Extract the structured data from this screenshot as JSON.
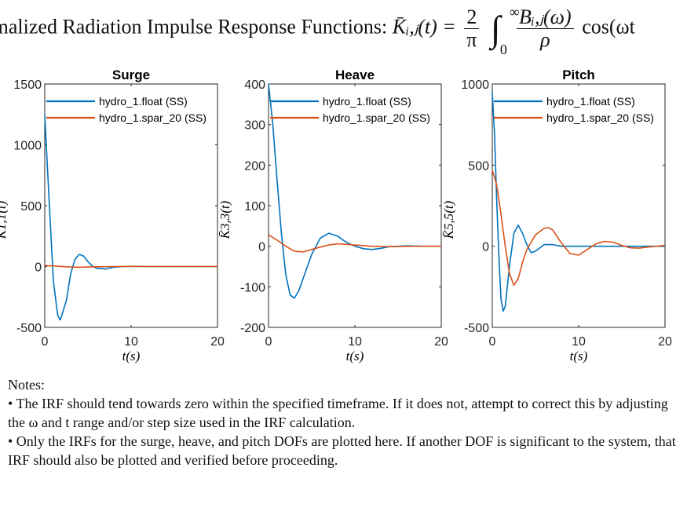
{
  "figure_title": {
    "prefix": "rmalized Radiation Impulse Response Functions:",
    "lhs": "K̄ᵢ,ⱼ(t) =",
    "frac1_num": "2",
    "frac1_den": "π",
    "int_upper": "∞",
    "int_lower": "0",
    "frac2_num": "Bᵢ,ⱼ(ω)",
    "frac2_den": "ρ",
    "tail": "cos(ωt"
  },
  "colors": {
    "series1": "#0072BD",
    "series2": "#D95319",
    "axis": "#262626"
  },
  "chart_data": [
    {
      "type": "line",
      "title": "Surge",
      "ylabel": "K̄1,1(t)",
      "xlabel": "t(s)",
      "xlim": [
        0,
        20
      ],
      "ylim": [
        -500,
        1500
      ],
      "xticks": [
        "0",
        "10",
        "20"
      ],
      "yticks": [
        "-500",
        "0",
        "500",
        "1000",
        "1500"
      ],
      "legend": "top-right",
      "series": [
        {
          "name": "hydro_1.float (SS)",
          "x": [
            0,
            0.5,
            1,
            1.5,
            1.8,
            2.5,
            3,
            3.5,
            4,
            4.5,
            5,
            5.5,
            6,
            7,
            8,
            9,
            10,
            12,
            14,
            16,
            18,
            20
          ],
          "y": [
            1250,
            550,
            -120,
            -400,
            -440,
            -280,
            -60,
            60,
            100,
            85,
            40,
            5,
            -15,
            -20,
            -5,
            0,
            2,
            0,
            0,
            0,
            0,
            0
          ]
        },
        {
          "name": "hydro_1.spar_20 (SS)",
          "x": [
            0,
            1,
            2,
            3,
            4,
            5,
            6,
            8,
            10,
            12,
            14,
            16,
            18,
            20
          ],
          "y": [
            8,
            5,
            0,
            -4,
            -6,
            -4,
            -2,
            0,
            1,
            0,
            0,
            0,
            0,
            0
          ]
        }
      ]
    },
    {
      "type": "line",
      "title": "Heave",
      "ylabel": "K̄3,3(t)",
      "xlabel": "t(s)",
      "xlim": [
        0,
        20
      ],
      "ylim": [
        -200,
        400
      ],
      "xticks": [
        "0",
        "10",
        "20"
      ],
      "yticks": [
        "-200",
        "-100",
        "0",
        "100",
        "200",
        "300",
        "400"
      ],
      "legend": "top-right",
      "series": [
        {
          "name": "hydro_1.float (SS)",
          "x": [
            0,
            0.5,
            1,
            1.5,
            2,
            2.5,
            3,
            3.5,
            4,
            5,
            6,
            7,
            8,
            9,
            10,
            11,
            12,
            13,
            14,
            16,
            18,
            20
          ],
          "y": [
            400,
            300,
            160,
            30,
            -70,
            -120,
            -128,
            -110,
            -80,
            -20,
            20,
            32,
            25,
            10,
            0,
            -6,
            -8,
            -5,
            -1,
            1,
            0,
            0
          ]
        },
        {
          "name": "hydro_1.spar_20 (SS)",
          "x": [
            0,
            1,
            2,
            3,
            4,
            5,
            6,
            7,
            8,
            10,
            12,
            14,
            16,
            18,
            20
          ],
          "y": [
            28,
            15,
            0,
            -12,
            -14,
            -8,
            -2,
            3,
            6,
            3,
            0,
            -1,
            0,
            0,
            0
          ]
        }
      ]
    },
    {
      "type": "line",
      "title": "Pitch",
      "ylabel": "K̄5,5(t)",
      "xlabel": "t(s)",
      "xlim": [
        0,
        20
      ],
      "ylim": [
        -500,
        1000
      ],
      "xticks": [
        "0",
        "10",
        "20"
      ],
      "yticks": [
        "-500",
        "0",
        "500",
        "1000"
      ],
      "legend": "top-right",
      "series": [
        {
          "name": "hydro_1.float (SS)",
          "x": [
            0,
            0.25,
            0.5,
            0.75,
            1,
            1.25,
            1.5,
            2,
            2.5,
            3,
            3.5,
            4,
            4.5,
            5,
            6,
            7,
            8,
            10,
            12,
            14,
            16,
            18,
            20
          ],
          "y": [
            950,
            700,
            300,
            -50,
            -320,
            -400,
            -370,
            -120,
            80,
            130,
            80,
            10,
            -40,
            -30,
            10,
            10,
            0,
            0,
            0,
            0,
            0,
            0,
            0
          ]
        },
        {
          "name": "hydro_1.spar_20 (SS)",
          "x": [
            0,
            0.5,
            1,
            1.5,
            2,
            2.5,
            3,
            3.5,
            4,
            5,
            6,
            6.5,
            7,
            8,
            9,
            10,
            11,
            12,
            13,
            14,
            15,
            16,
            17,
            18,
            19,
            20
          ],
          "y": [
            470,
            380,
            200,
            0,
            -170,
            -240,
            -200,
            -100,
            -20,
            70,
            110,
            115,
            100,
            20,
            -45,
            -55,
            -20,
            15,
            30,
            25,
            5,
            -10,
            -12,
            -5,
            0,
            5
          ]
        }
      ]
    }
  ],
  "notes": {
    "heading": "Notes:",
    "line1": "• The IRF should tend towards zero within the specified timeframe. If it does not, attempt to correct this by adjusting the ω and t range and/or step size used in the IRF calculation.",
    "line2": "• Only the IRFs for the surge, heave, and pitch DOFs are plotted here. If another DOF is significant to the system, that IRF should also be plotted and verified before proceeding."
  }
}
